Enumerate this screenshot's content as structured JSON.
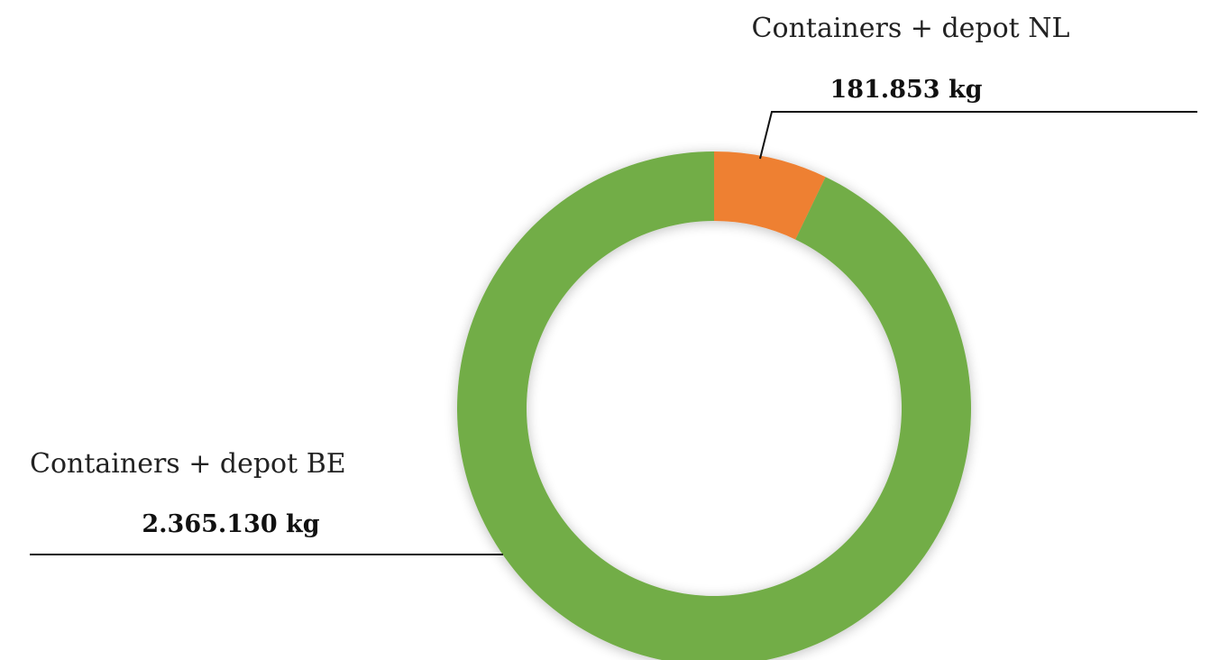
{
  "chart_data": {
    "type": "pie",
    "categories": [
      "Containers + depot NL",
      "Containers + depot BE"
    ],
    "values": [
      181853,
      2365130
    ],
    "value_labels": [
      "181.853 kg",
      "2.365.130 kg"
    ],
    "colors": [
      "#ee8033",
      "#72ad47"
    ]
  }
}
